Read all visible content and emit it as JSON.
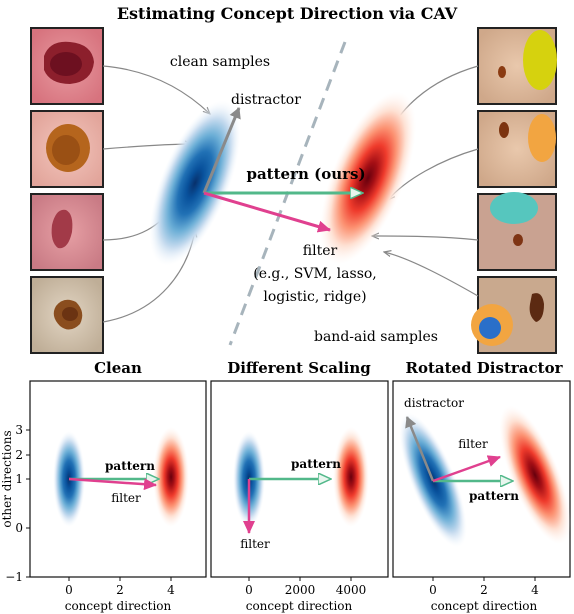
{
  "figure": {
    "title": "Estimating Concept Direction via CAV",
    "top": {
      "clean_label": "clean samples",
      "bandaid_label": "band-aid samples",
      "distractor_label": "distractor",
      "pattern_label": "pattern (ours)",
      "filter_label": "filter",
      "filter_examples_line1": "(e.g., SVM, lasso,",
      "filter_examples_line2": "logistic, ridge)"
    },
    "panels": [
      {
        "title": "Clean",
        "xlabel": "concept direction",
        "ylabel": "other directions",
        "x_ticks": [
          "0",
          "2",
          "4"
        ],
        "y_ticks": [
          "−1",
          "0",
          "1",
          "2",
          "3"
        ],
        "pattern_label": "pattern",
        "filter_label": "filter"
      },
      {
        "title": "Different Scaling",
        "xlabel": "concept direction",
        "x_ticks": [
          "0",
          "2000",
          "4000"
        ],
        "pattern_label": "pattern",
        "filter_label": "filter"
      },
      {
        "title": "Rotated Distractor",
        "xlabel": "concept direction",
        "x_ticks": [
          "0",
          "2",
          "4"
        ],
        "pattern_label": "pattern",
        "filter_label": "filter",
        "distractor_label": "distractor"
      }
    ]
  },
  "colors": {
    "blue_dark": "#08519c",
    "red_dark": "#a50f15",
    "pattern_arrow": "#52b88a",
    "filter_arrow": "#e0408f",
    "distractor_arrow": "#8a8a8a"
  }
}
